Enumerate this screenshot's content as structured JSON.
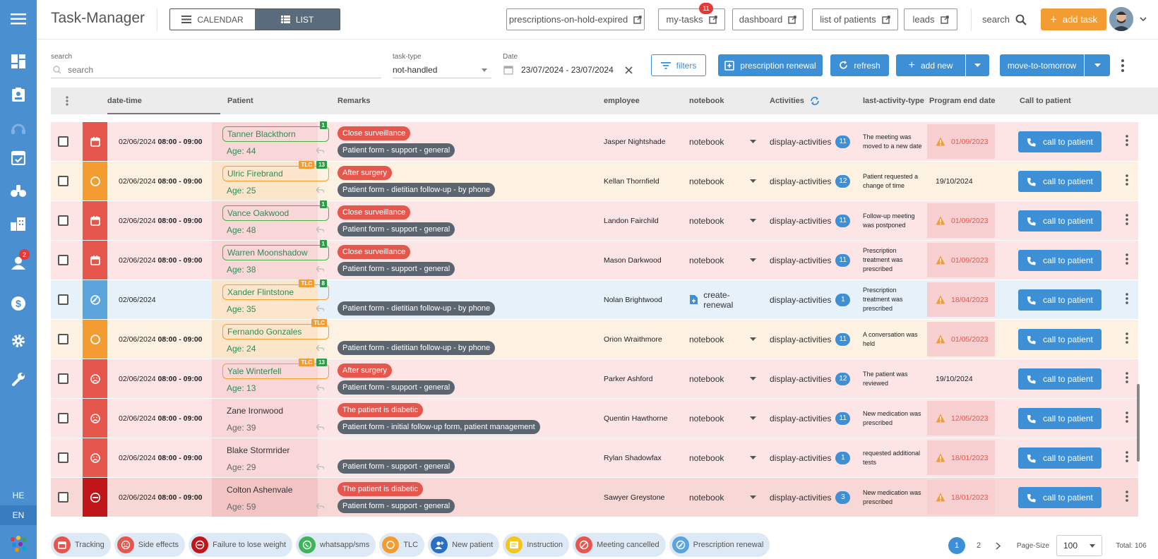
{
  "app": {
    "title": "Task-Manager"
  },
  "view_toggle": {
    "calendar": "CALENDAR",
    "list": "LIST"
  },
  "nav_links": [
    {
      "label": "prescriptions-on-hold-expired"
    },
    {
      "label": "my-tasks",
      "badge": "11"
    },
    {
      "label": "dashboard"
    },
    {
      "label": "list of patients"
    },
    {
      "label": "leads"
    }
  ],
  "header": {
    "search_label": "search",
    "add_task": "add task"
  },
  "sidebar": {
    "badge": "2",
    "lang_he": "HE",
    "lang_en": "EN"
  },
  "filters": {
    "search_label": "search",
    "search_placeholder": "search",
    "task_type_label": "task-type",
    "task_type_value": "not-handled",
    "date_label": "Date",
    "date_value": "23/07/2024 - 23/07/2024",
    "filters_btn": "filters",
    "prescription_renewal": "prescription renewal",
    "refresh": "refresh",
    "add_new": "add new",
    "move_to_tomorrow": "move-to-tomorrow"
  },
  "columns": {
    "datetime": "date-time",
    "patient": "Patient",
    "remarks": "Remarks",
    "employee": "employee",
    "notebook": "notebook",
    "activities": "Activities",
    "last_activity": "last-activity-type",
    "program_end": "Program end date",
    "call": "Call to patient"
  },
  "rows": [
    {
      "status": "tracking",
      "date": "02/06/2024",
      "time": "08:00 - 09:00",
      "name": "Tanner Blackthorn",
      "age": "Age: 44",
      "box": "green",
      "tlc": false,
      "num": "1",
      "remarks": [
        {
          "t": "Close surveillance",
          "c": "red"
        },
        {
          "t": "Patient form - support - general",
          "c": "gray"
        }
      ],
      "employee": "Jasper Nightshade",
      "notebook": "notebook",
      "activities": "display-activities",
      "count": "11",
      "last": "The meeting was moved to a new date",
      "end": "01/09/2023",
      "warn": true,
      "bg": "#fde5e6",
      "pbg": "#f9d6d7"
    },
    {
      "status": "tlc",
      "date": "02/06/2024",
      "time": "08:00 - 09:00",
      "name": "Ulric Firebrand",
      "age": "Age: 25",
      "box": "orange",
      "tlc": true,
      "num": "13",
      "remarks": [
        {
          "t": "After surgery",
          "c": "red"
        },
        {
          "t": "Patient form - dietitian follow-up - by phone",
          "c": "gray"
        }
      ],
      "employee": "Kellan Thornfield",
      "notebook": "notebook",
      "activities": "display-activities",
      "count": "12",
      "last": "Patient requested a change of time",
      "end": "19/10/2024",
      "warn": false,
      "bg": "#fdf1e2",
      "pbg": "#fbe6cc"
    },
    {
      "status": "tracking",
      "date": "02/06/2024",
      "time": "08:00 - 09:00",
      "name": "Vance Oakwood",
      "age": "Age: 48",
      "box": "green",
      "tlc": false,
      "num": "1",
      "remarks": [
        {
          "t": "Close surveillance",
          "c": "red"
        },
        {
          "t": "Patient form - support - general",
          "c": "gray"
        }
      ],
      "employee": "Landon Fairchild",
      "notebook": "notebook",
      "activities": "display-activities",
      "count": "11",
      "last": "Follow-up meeting was postponed",
      "end": "01/09/2023",
      "warn": true,
      "bg": "#fde5e6",
      "pbg": "#f9d6d7"
    },
    {
      "status": "tracking",
      "date": "02/06/2024",
      "time": "08:00 - 09:00",
      "name": "Warren Moonshadow",
      "age": "Age: 38",
      "box": "green",
      "tlc": false,
      "num": "1",
      "remarks": [
        {
          "t": "Close surveillance",
          "c": "red"
        },
        {
          "t": "Patient form - support - general",
          "c": "gray"
        }
      ],
      "employee": "Mason Darkwood",
      "notebook": "notebook",
      "activities": "display-activities",
      "count": "11",
      "last": "Prescription treatment was prescribed",
      "end": "01/09/2023",
      "warn": true,
      "bg": "#fde5e6",
      "pbg": "#f9d6d7"
    },
    {
      "status": "renewal",
      "date": "02/06/2024",
      "time": "",
      "name": "Xander Flintstone",
      "age": "Age: 35",
      "box": "orange",
      "tlc": true,
      "num": "8",
      "remarks": [
        {
          "t": "Patient form - dietitian follow-up - by phone",
          "c": "gray"
        }
      ],
      "employee": "Nolan Brightwood",
      "notebook": "create-renewal",
      "create": true,
      "activities": "display-activities",
      "count": "1",
      "last": "Prescription treatment was prescribed",
      "end": "18/04/2023",
      "warn": true,
      "bg": "#e6f1fa",
      "pbg": "#fbe6cc"
    },
    {
      "status": "tlc",
      "date": "02/06/2024",
      "time": "08:00 - 09:00",
      "name": "Fernando Gonzales",
      "age": "Age: 24",
      "box": "orange",
      "tlc": true,
      "num": "",
      "plainname": true,
      "remarks": [
        {
          "t": "Patient form - dietitian follow-up - by phone",
          "c": "gray"
        }
      ],
      "employee": "Orion Wraithmore",
      "notebook": "notebook",
      "activities": "display-activities",
      "count": "11",
      "last": "A conversation was held",
      "end": "01/05/2023",
      "warn": true,
      "bg": "#fdf1e2",
      "pbg": "#fbe6cc"
    },
    {
      "status": "side",
      "date": "02/06/2024",
      "time": "08:00 - 09:00",
      "name": "Yale Winterfell",
      "age": "Age: 13",
      "box": "orange",
      "tlc": true,
      "num": "13",
      "remarks": [
        {
          "t": "After surgery",
          "c": "red"
        },
        {
          "t": "Patient form - support - general",
          "c": "gray"
        }
      ],
      "employee": "Parker Ashford",
      "notebook": "notebook",
      "activities": "display-activities",
      "count": "12",
      "last": "The patient was reviewed",
      "end": "19/10/2024",
      "warn": false,
      "bg": "#fde5e6",
      "pbg": "#f9d6d7"
    },
    {
      "status": "side",
      "date": "02/06/2024",
      "time": "08:00 - 09:00",
      "name": "Zane Ironwood",
      "age": "Age: 39",
      "box": "plain",
      "tlc": false,
      "num": "",
      "plainname": true,
      "remarks": [
        {
          "t": "The patient is diabetic",
          "c": "red"
        },
        {
          "t": "Patient form - initial follow-up form, patient management",
          "c": "gray"
        }
      ],
      "employee": "Quentin Hawthorne",
      "notebook": "notebook",
      "activities": "display-activities",
      "count": "11",
      "last": "New medication was prescribed",
      "end": "12/05/2023",
      "warn": true,
      "bg": "#fde5e6",
      "pbg": "#f9d6d7"
    },
    {
      "status": "side",
      "date": "02/06/2024",
      "time": "08:00 - 09:00",
      "name": "Blake Stormrider",
      "age": "Age: 29",
      "box": "plain",
      "tlc": false,
      "num": "",
      "plainname": true,
      "remarks": [
        {
          "t": "Patient form - support - general",
          "c": "gray"
        }
      ],
      "employee": "Rylan Shadowfax",
      "notebook": "notebook",
      "activities": "display-activities",
      "count": "1",
      "last": "requested additional tests",
      "end": "18/01/2023",
      "warn": true,
      "bg": "#fde5e6",
      "pbg": "#f9d6d7"
    },
    {
      "status": "failure",
      "date": "02/06/2024",
      "time": "08:00 - 09:00",
      "name": "Colton Ashenvale",
      "age": "Age: 59",
      "box": "plain",
      "tlc": false,
      "num": "",
      "plainname": true,
      "remarks": [
        {
          "t": "The patient is diabetic",
          "c": "red"
        },
        {
          "t": "Patient form - support - general",
          "c": "gray"
        }
      ],
      "employee": "Sawyer Greystone",
      "notebook": "notebook",
      "activities": "display-activities",
      "count": "3",
      "last": "New medication was prescribed",
      "end": "18/01/2023",
      "warn": true,
      "bg": "#f8d7d7",
      "pbg": "#f3c4c4"
    }
  ],
  "call_label": "call to patient",
  "legend": [
    {
      "label": "Tracking",
      "icon": "calendar-icon",
      "color": "#e5574d"
    },
    {
      "label": "Side effects",
      "icon": "sad-face-icon",
      "color": "#e5574d"
    },
    {
      "label": "Failure to lose weight",
      "icon": "minus-circle-icon",
      "color": "#c0161a"
    },
    {
      "label": "whatsapp/sms",
      "icon": "whatsapp-icon",
      "color": "#3cb55a"
    },
    {
      "label": "TLC",
      "icon": "circle-icon",
      "color": "#f39c32"
    },
    {
      "label": "New patient",
      "icon": "add-user-icon",
      "color": "#2a6fc2"
    },
    {
      "label": "Instruction",
      "icon": "note-icon",
      "color": "#f5c518"
    },
    {
      "label": "Meeting cancelled",
      "icon": "cancel-icon",
      "color": "#e5574d"
    },
    {
      "label": "Prescription renewal",
      "icon": "renewal-icon",
      "color": "#5ba4dc"
    }
  ],
  "pagination": {
    "page1": "1",
    "page2": "2",
    "page_size_label": "Page-Size",
    "page_size": "100",
    "total": "Total: 106"
  },
  "status_colors": {
    "tracking": "#e5574d",
    "tlc": "#f39c32",
    "renewal": "#5ba4dc",
    "side": "#e5574d",
    "failure": "#c0161a"
  }
}
